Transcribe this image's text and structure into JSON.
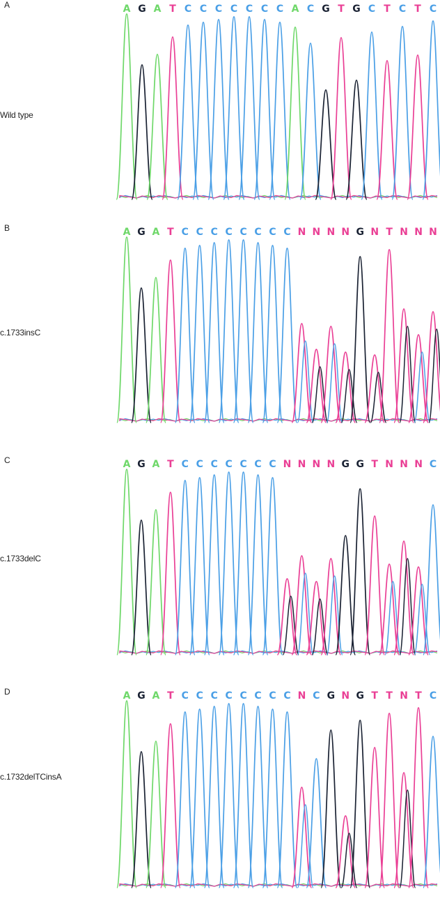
{
  "colors": {
    "A": "#6fd86a",
    "C": "#4a9fe6",
    "G": "#1a2233",
    "T": "#ea3f95",
    "N": "#ea3f95"
  },
  "panels": [
    {
      "letter": "A",
      "label": "Wild type",
      "bases": [
        "A",
        "G",
        "A",
        "T",
        "C",
        "C",
        "C",
        "C",
        "C",
        "C",
        "C",
        "A",
        "C",
        "G",
        "T",
        "G",
        "C",
        "T",
        "C",
        "T",
        "C"
      ]
    },
    {
      "letter": "B",
      "label": "c.1733insC",
      "bases": [
        "A",
        "G",
        "A",
        "T",
        "C",
        "C",
        "C",
        "C",
        "C",
        "C",
        "C",
        "C",
        "N",
        "N",
        "N",
        "N",
        "G",
        "N",
        "T",
        "N",
        "N",
        "N"
      ]
    },
    {
      "letter": "C",
      "label": "c.1733delC",
      "bases": [
        "A",
        "G",
        "A",
        "T",
        "C",
        "C",
        "C",
        "C",
        "C",
        "C",
        "C",
        "N",
        "N",
        "N",
        "N",
        "G",
        "G",
        "T",
        "N",
        "N",
        "N",
        "C"
      ]
    },
    {
      "letter": "D",
      "label": "c.1732delTCinsA",
      "bases": [
        "A",
        "G",
        "A",
        "T",
        "C",
        "C",
        "C",
        "C",
        "C",
        "C",
        "C",
        "C",
        "N",
        "C",
        "G",
        "N",
        "G",
        "T",
        "T",
        "N",
        "T",
        "C"
      ]
    }
  ]
}
